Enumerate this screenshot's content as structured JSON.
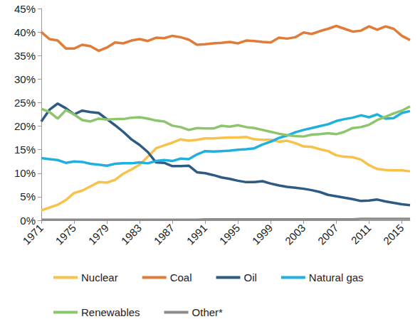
{
  "chart_data": {
    "type": "line",
    "x": [
      1971,
      1972,
      1973,
      1974,
      1975,
      1976,
      1977,
      1978,
      1979,
      1980,
      1981,
      1982,
      1983,
      1984,
      1985,
      1986,
      1987,
      1988,
      1989,
      1990,
      1991,
      1992,
      1993,
      1994,
      1995,
      1996,
      1997,
      1998,
      1999,
      2000,
      2001,
      2002,
      2003,
      2004,
      2005,
      2006,
      2007,
      2008,
      2009,
      2010,
      2011,
      2012,
      2013,
      2014,
      2015,
      2016
    ],
    "xlim": [
      1971,
      2016
    ],
    "xticks": [
      1971,
      1975,
      1979,
      1983,
      1987,
      1991,
      1995,
      1999,
      2003,
      2007,
      2011,
      2015
    ],
    "ylim": [
      0,
      45
    ],
    "yticks": [
      {
        "value": 0,
        "label": "0%"
      },
      {
        "value": 5,
        "label": "5%"
      },
      {
        "value": 10,
        "label": "10%"
      },
      {
        "value": 15,
        "label": "15%"
      },
      {
        "value": 20,
        "label": "20%"
      },
      {
        "value": 25,
        "label": "25%"
      },
      {
        "value": 30,
        "label": "30%"
      },
      {
        "value": 35,
        "label": "35%"
      },
      {
        "value": 40,
        "label": "40%"
      },
      {
        "value": 45,
        "label": "45%"
      }
    ],
    "grid": false,
    "legend": "bottom",
    "series": [
      {
        "name": "Nuclear",
        "color": "#f8c14a",
        "values": [
          2.1,
          2.7,
          3.3,
          4.3,
          5.8,
          6.3,
          7.2,
          8.1,
          8.0,
          8.6,
          9.9,
          10.8,
          11.8,
          13.5,
          15.3,
          15.9,
          16.5,
          17.2,
          16.9,
          17.1,
          17.4,
          17.4,
          17.5,
          17.6,
          17.6,
          17.7,
          17.2,
          17.1,
          17.1,
          16.7,
          16.9,
          16.4,
          15.7,
          15.6,
          15.1,
          14.7,
          13.8,
          13.5,
          13.4,
          12.9,
          11.7,
          10.9,
          10.7,
          10.6,
          10.6,
          10.4
        ]
      },
      {
        "name": "Coal",
        "color": "#e07b39",
        "values": [
          40.0,
          38.5,
          38.2,
          36.5,
          36.5,
          37.3,
          37.0,
          36.0,
          36.7,
          37.8,
          37.6,
          38.2,
          38.5,
          38.1,
          38.8,
          38.7,
          39.2,
          38.9,
          38.4,
          37.3,
          37.4,
          37.6,
          37.7,
          37.9,
          37.6,
          38.2,
          38.1,
          37.9,
          37.8,
          38.8,
          38.6,
          38.9,
          39.9,
          39.6,
          40.2,
          40.7,
          41.3,
          40.7,
          40.1,
          40.3,
          41.2,
          40.5,
          41.2,
          40.7,
          39.2,
          38.3
        ]
      },
      {
        "name": "Oil",
        "color": "#2e5b84",
        "values": [
          21.0,
          23.5,
          24.8,
          23.8,
          22.5,
          23.3,
          23.0,
          22.8,
          21.5,
          20.2,
          18.8,
          17.2,
          16.0,
          14.5,
          12.3,
          12.2,
          11.5,
          11.5,
          11.6,
          10.2,
          10.0,
          9.6,
          9.1,
          8.8,
          8.4,
          8.1,
          8.1,
          8.3,
          7.8,
          7.4,
          7.1,
          6.9,
          6.7,
          6.4,
          6.0,
          5.4,
          5.1,
          4.8,
          4.5,
          4.1,
          4.2,
          4.4,
          4.0,
          3.7,
          3.4,
          3.2
        ]
      },
      {
        "name": "Natural gas",
        "color": "#1fb0e0",
        "values": [
          13.2,
          13.0,
          12.8,
          12.2,
          12.5,
          12.4,
          12.0,
          11.8,
          11.6,
          12.0,
          12.1,
          12.1,
          12.3,
          12.1,
          12.6,
          12.8,
          12.6,
          13.1,
          13.0,
          14.0,
          14.7,
          14.6,
          14.7,
          14.8,
          15.0,
          15.1,
          15.3,
          16.1,
          16.7,
          17.5,
          18.0,
          18.7,
          19.2,
          19.6,
          20.0,
          20.4,
          21.1,
          21.5,
          21.8,
          22.3,
          21.9,
          22.5,
          21.6,
          21.7,
          22.8,
          23.2
        ]
      },
      {
        "name": "Renewables",
        "color": "#8cc56b",
        "values": [
          23.7,
          23.0,
          21.6,
          23.4,
          22.5,
          21.3,
          21.0,
          21.6,
          21.4,
          21.5,
          21.5,
          21.8,
          21.9,
          21.6,
          21.2,
          21.0,
          20.1,
          19.8,
          19.2,
          19.6,
          19.5,
          19.5,
          20.1,
          19.9,
          20.2,
          19.8,
          19.6,
          19.2,
          18.8,
          18.4,
          18.1,
          17.9,
          17.8,
          18.2,
          18.3,
          18.5,
          18.3,
          18.8,
          19.6,
          19.8,
          20.3,
          21.3,
          22.0,
          22.7,
          23.3,
          24.2
        ]
      },
      {
        "name": "Other*",
        "color": "#8c8c8c",
        "values": [
          0.1,
          0.1,
          0.1,
          0.1,
          0.1,
          0.1,
          0.1,
          0.1,
          0.1,
          0.1,
          0.1,
          0.1,
          0.1,
          0.1,
          0.1,
          0.1,
          0.1,
          0.1,
          0.1,
          0.1,
          0.2,
          0.2,
          0.2,
          0.2,
          0.2,
          0.2,
          0.2,
          0.2,
          0.2,
          0.2,
          0.2,
          0.2,
          0.2,
          0.2,
          0.2,
          0.2,
          0.2,
          0.2,
          0.2,
          0.3,
          0.3,
          0.3,
          0.3,
          0.3,
          0.3,
          0.3
        ]
      }
    ]
  }
}
